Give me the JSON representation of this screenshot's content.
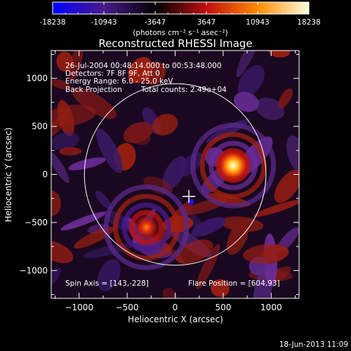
{
  "colorbar": {
    "ticks": [
      "-18238",
      "-10943",
      "-3647",
      "3647",
      "10943",
      "18238"
    ],
    "label": "(photons cm⁻² s⁻¹ asec⁻²)",
    "colors": [
      "#0000ff",
      "#4a1a8a",
      "#000000",
      "#c01010",
      "#ff8a00",
      "#ffffe0"
    ]
  },
  "plot": {
    "title": "Reconstructed RHESSI Image",
    "info_lines": [
      "26-Jul-2004 00:48:14.000 to 00:53:48.000",
      "Detectors: 7F 8F 9F, Att 0",
      "Energy Range: 6.0 - 25.0 keV"
    ],
    "method": "Back Projection",
    "total_counts": "Total counts: 2.49e+04",
    "spin_axis": "Spin Axis = [143,-228]",
    "flare_position": "Flare Position = [604,93]"
  },
  "chart_data": {
    "type": "heatmap",
    "title": "Reconstructed RHESSI Image",
    "xlabel": "Heliocentric X (arcsec)",
    "ylabel": "Heliocentric Y (arcsec)",
    "xlim": [
      -1290,
      1290
    ],
    "ylim": [
      -1290,
      1290
    ],
    "x_ticks": [
      -1000,
      -500,
      0,
      500,
      1000
    ],
    "y_ticks": [
      -1000,
      -500,
      0,
      500,
      1000
    ],
    "x_tick_labels": [
      "−1000",
      "−500",
      "0",
      "500",
      "1000"
    ],
    "y_tick_labels": [
      "−1000",
      "−500",
      "0",
      "500",
      "1000"
    ],
    "zlim": [
      -18238,
      18238
    ],
    "solar_radius_arcsec": 945,
    "sources": [
      {
        "x": 604,
        "y": 93,
        "peak": 18238
      },
      {
        "x": -300,
        "y": -550,
        "peak": 9000
      }
    ],
    "spin_axis": [
      143,
      -228
    ]
  },
  "footer": {
    "timestamp": "18-Jun-2013 11:09"
  }
}
